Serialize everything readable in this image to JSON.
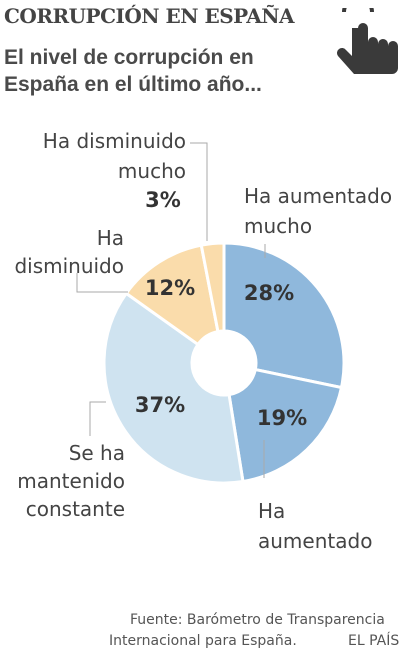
{
  "header": {
    "title": "CORRUPCIÓN EN ESPAÑA"
  },
  "subtitle": {
    "line1": "El nivel de corrupción en",
    "line2": "España en el último año..."
  },
  "icons": {
    "hand": "hand-pointer-icon"
  },
  "source": {
    "line1": "Fuente: Barómetro de Transparencia",
    "line2": "Internacional para España.",
    "brand": "EL PAÍS"
  },
  "chart_data": {
    "type": "pie",
    "donut": true,
    "categories": [
      "Ha aumentado mucho",
      "Ha aumentado",
      "Se ha mantenido constante",
      "Ha disminuido",
      "Ha disminuido mucho"
    ],
    "values": [
      28,
      19,
      37,
      12,
      3
    ],
    "value_labels": [
      "28%",
      "19%",
      "37%",
      "12%",
      "3%"
    ],
    "label_lines": [
      [
        "Ha aumentado",
        "mucho"
      ],
      [
        "Ha",
        "aumentado"
      ],
      [
        "Se ha",
        "mantenido",
        "constante"
      ],
      [
        "Ha",
        "disminuido"
      ],
      [
        "Ha disminuido",
        "mucho"
      ]
    ],
    "colors": [
      "#8fb8dc",
      "#8fb8dc",
      "#cfe3f0",
      "#fadcab",
      "#fadcab"
    ]
  }
}
